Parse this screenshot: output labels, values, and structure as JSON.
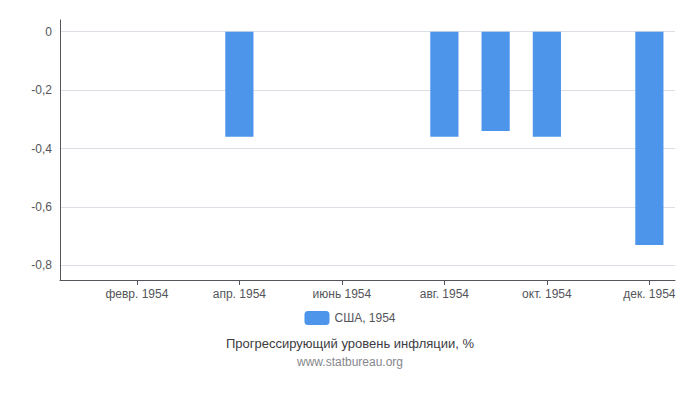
{
  "chart_data": {
    "type": "bar",
    "title": "Прогрессирующий уровень инфляции, %",
    "subtitle": "www.statbureau.org",
    "categories": [
      null,
      "февр. 1954",
      null,
      "апр. 1954",
      null,
      "июнь 1954",
      null,
      "авг. 1954",
      null,
      "окт. 1954",
      null,
      "дек. 1954"
    ],
    "series": [
      {
        "name": "США, 1954",
        "color": "#4d94eb",
        "values": [
          0,
          0,
          0,
          -0.36,
          0,
          0,
          0,
          -0.36,
          -0.34,
          -0.36,
          0,
          -0.73
        ]
      }
    ],
    "ylim": [
      -0.85,
      0.04
    ],
    "yticks": [
      0,
      {
        "value": -0.2,
        "label": "-0,2"
      },
      {
        "value": -0.4,
        "label": "-0,4"
      },
      {
        "value": -0.6,
        "label": "-0,6"
      },
      {
        "value": -0.8,
        "label": "-0,8"
      }
    ],
    "grid": true,
    "legend": "bottom"
  }
}
